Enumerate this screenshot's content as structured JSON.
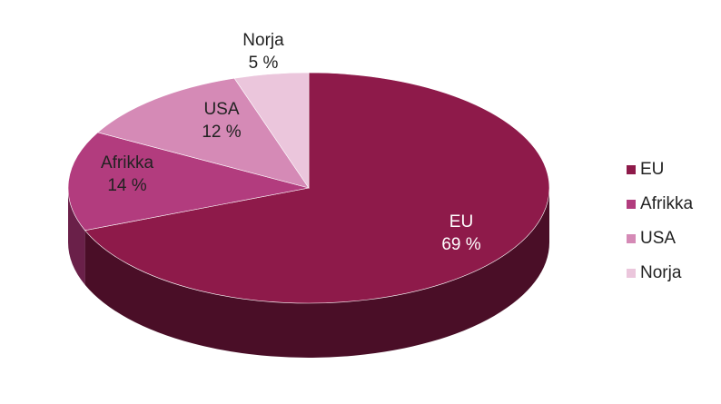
{
  "chart_data": {
    "type": "pie",
    "categories": [
      "EU",
      "Afrikka",
      "USA",
      "Norja"
    ],
    "values": [
      69,
      14,
      12,
      5
    ],
    "value_labels": [
      "69 %",
      "14 %",
      "12 %",
      "5 %"
    ],
    "colors": [
      "#8e1a4a",
      "#b23c7e",
      "#d58ab6",
      "#ebc6dc"
    ],
    "side_colors": [
      "#4a0e27",
      "#6a2049",
      "#8a5072",
      "#9a7585"
    ],
    "label_colors": [
      "#ffffff",
      "#222222",
      "#222222",
      "#222222"
    ],
    "legend": {
      "position": "right",
      "items": [
        "EU",
        "Afrikka",
        "USA",
        "Norja"
      ]
    },
    "start_angle_deg": 90,
    "direction": "clockwise",
    "style": "3d"
  }
}
